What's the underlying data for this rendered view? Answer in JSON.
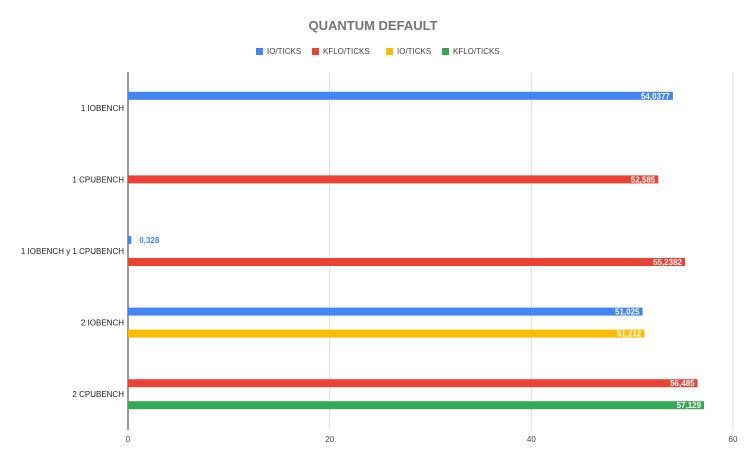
{
  "chart_data": {
    "type": "bar",
    "orientation": "horizontal",
    "title": "QUANTUM DEFAULT",
    "xlabel": "",
    "ylabel": "",
    "xlim": [
      0,
      60
    ],
    "x_ticks": [
      "0",
      "20",
      "40",
      "60"
    ],
    "grid": true,
    "legend_position": "top",
    "categories": [
      "1 IOBENCH",
      "1 CPUBENCH",
      "1 IOBENCH y 1 CPUBENCH",
      "2 IOBENCH",
      "2 CPUBENCH"
    ],
    "series": [
      {
        "name": "IO/TICKS",
        "color": "#4285F4",
        "values": [
          54.0377,
          null,
          0.328,
          51.025,
          null
        ],
        "labels": [
          "54,0377",
          "",
          "0,328",
          "51,025",
          ""
        ]
      },
      {
        "name": "KFLO/TICKS",
        "color": "#EA4335",
        "values": [
          null,
          52.585,
          55.2382,
          null,
          56.485
        ],
        "labels": [
          "",
          "52,585",
          "55,2382",
          "",
          "56,485"
        ]
      },
      {
        "name": "IO/TICKS",
        "color": "#FBBC04",
        "values": [
          null,
          null,
          null,
          51.212,
          null
        ],
        "labels": [
          "",
          "",
          "",
          "51,212",
          ""
        ]
      },
      {
        "name": "KFLO/TICKS",
        "color": "#34A853",
        "values": [
          null,
          null,
          null,
          null,
          57.129
        ],
        "labels": [
          "",
          "",
          "",
          "",
          "57,129"
        ]
      }
    ]
  }
}
